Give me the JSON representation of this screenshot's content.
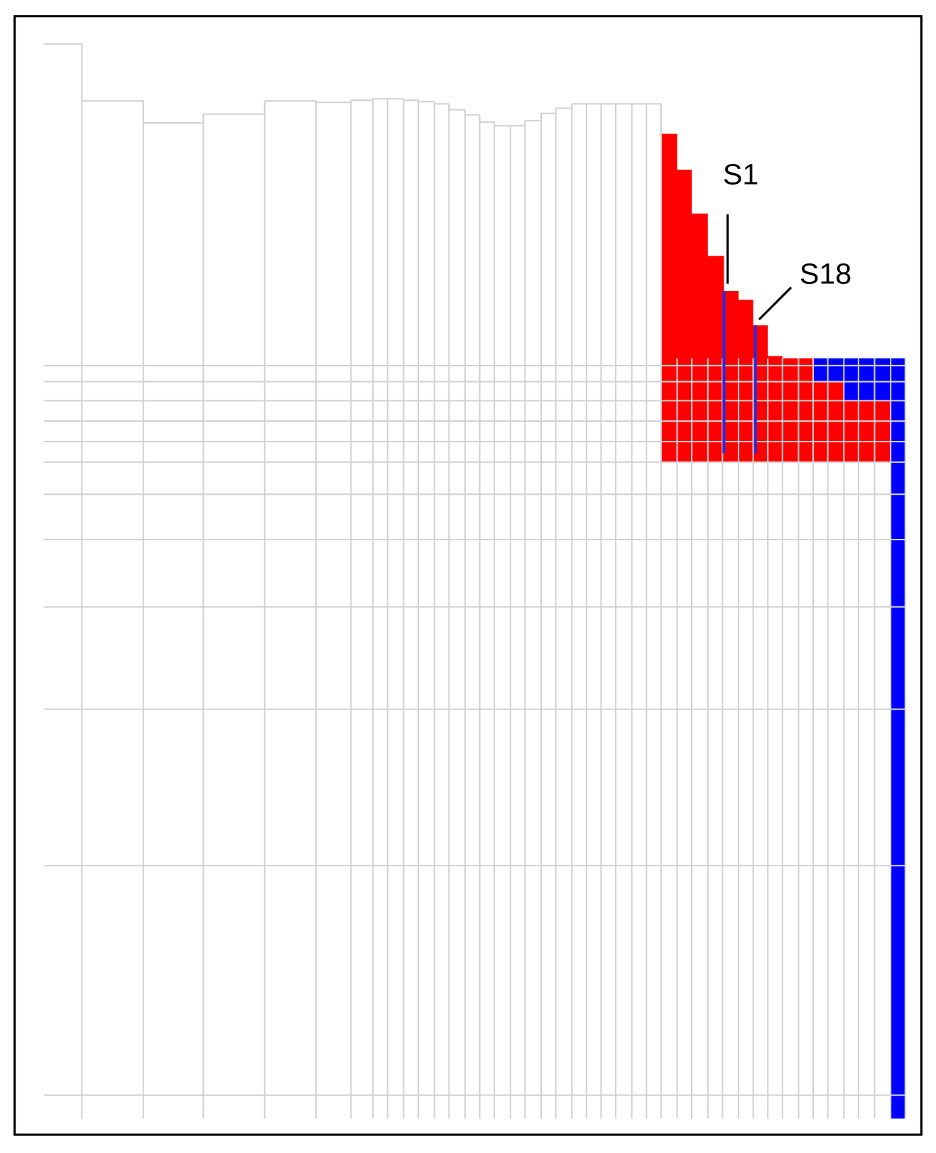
{
  "labels": {
    "s1": "S1",
    "s18": "S18"
  }
}
